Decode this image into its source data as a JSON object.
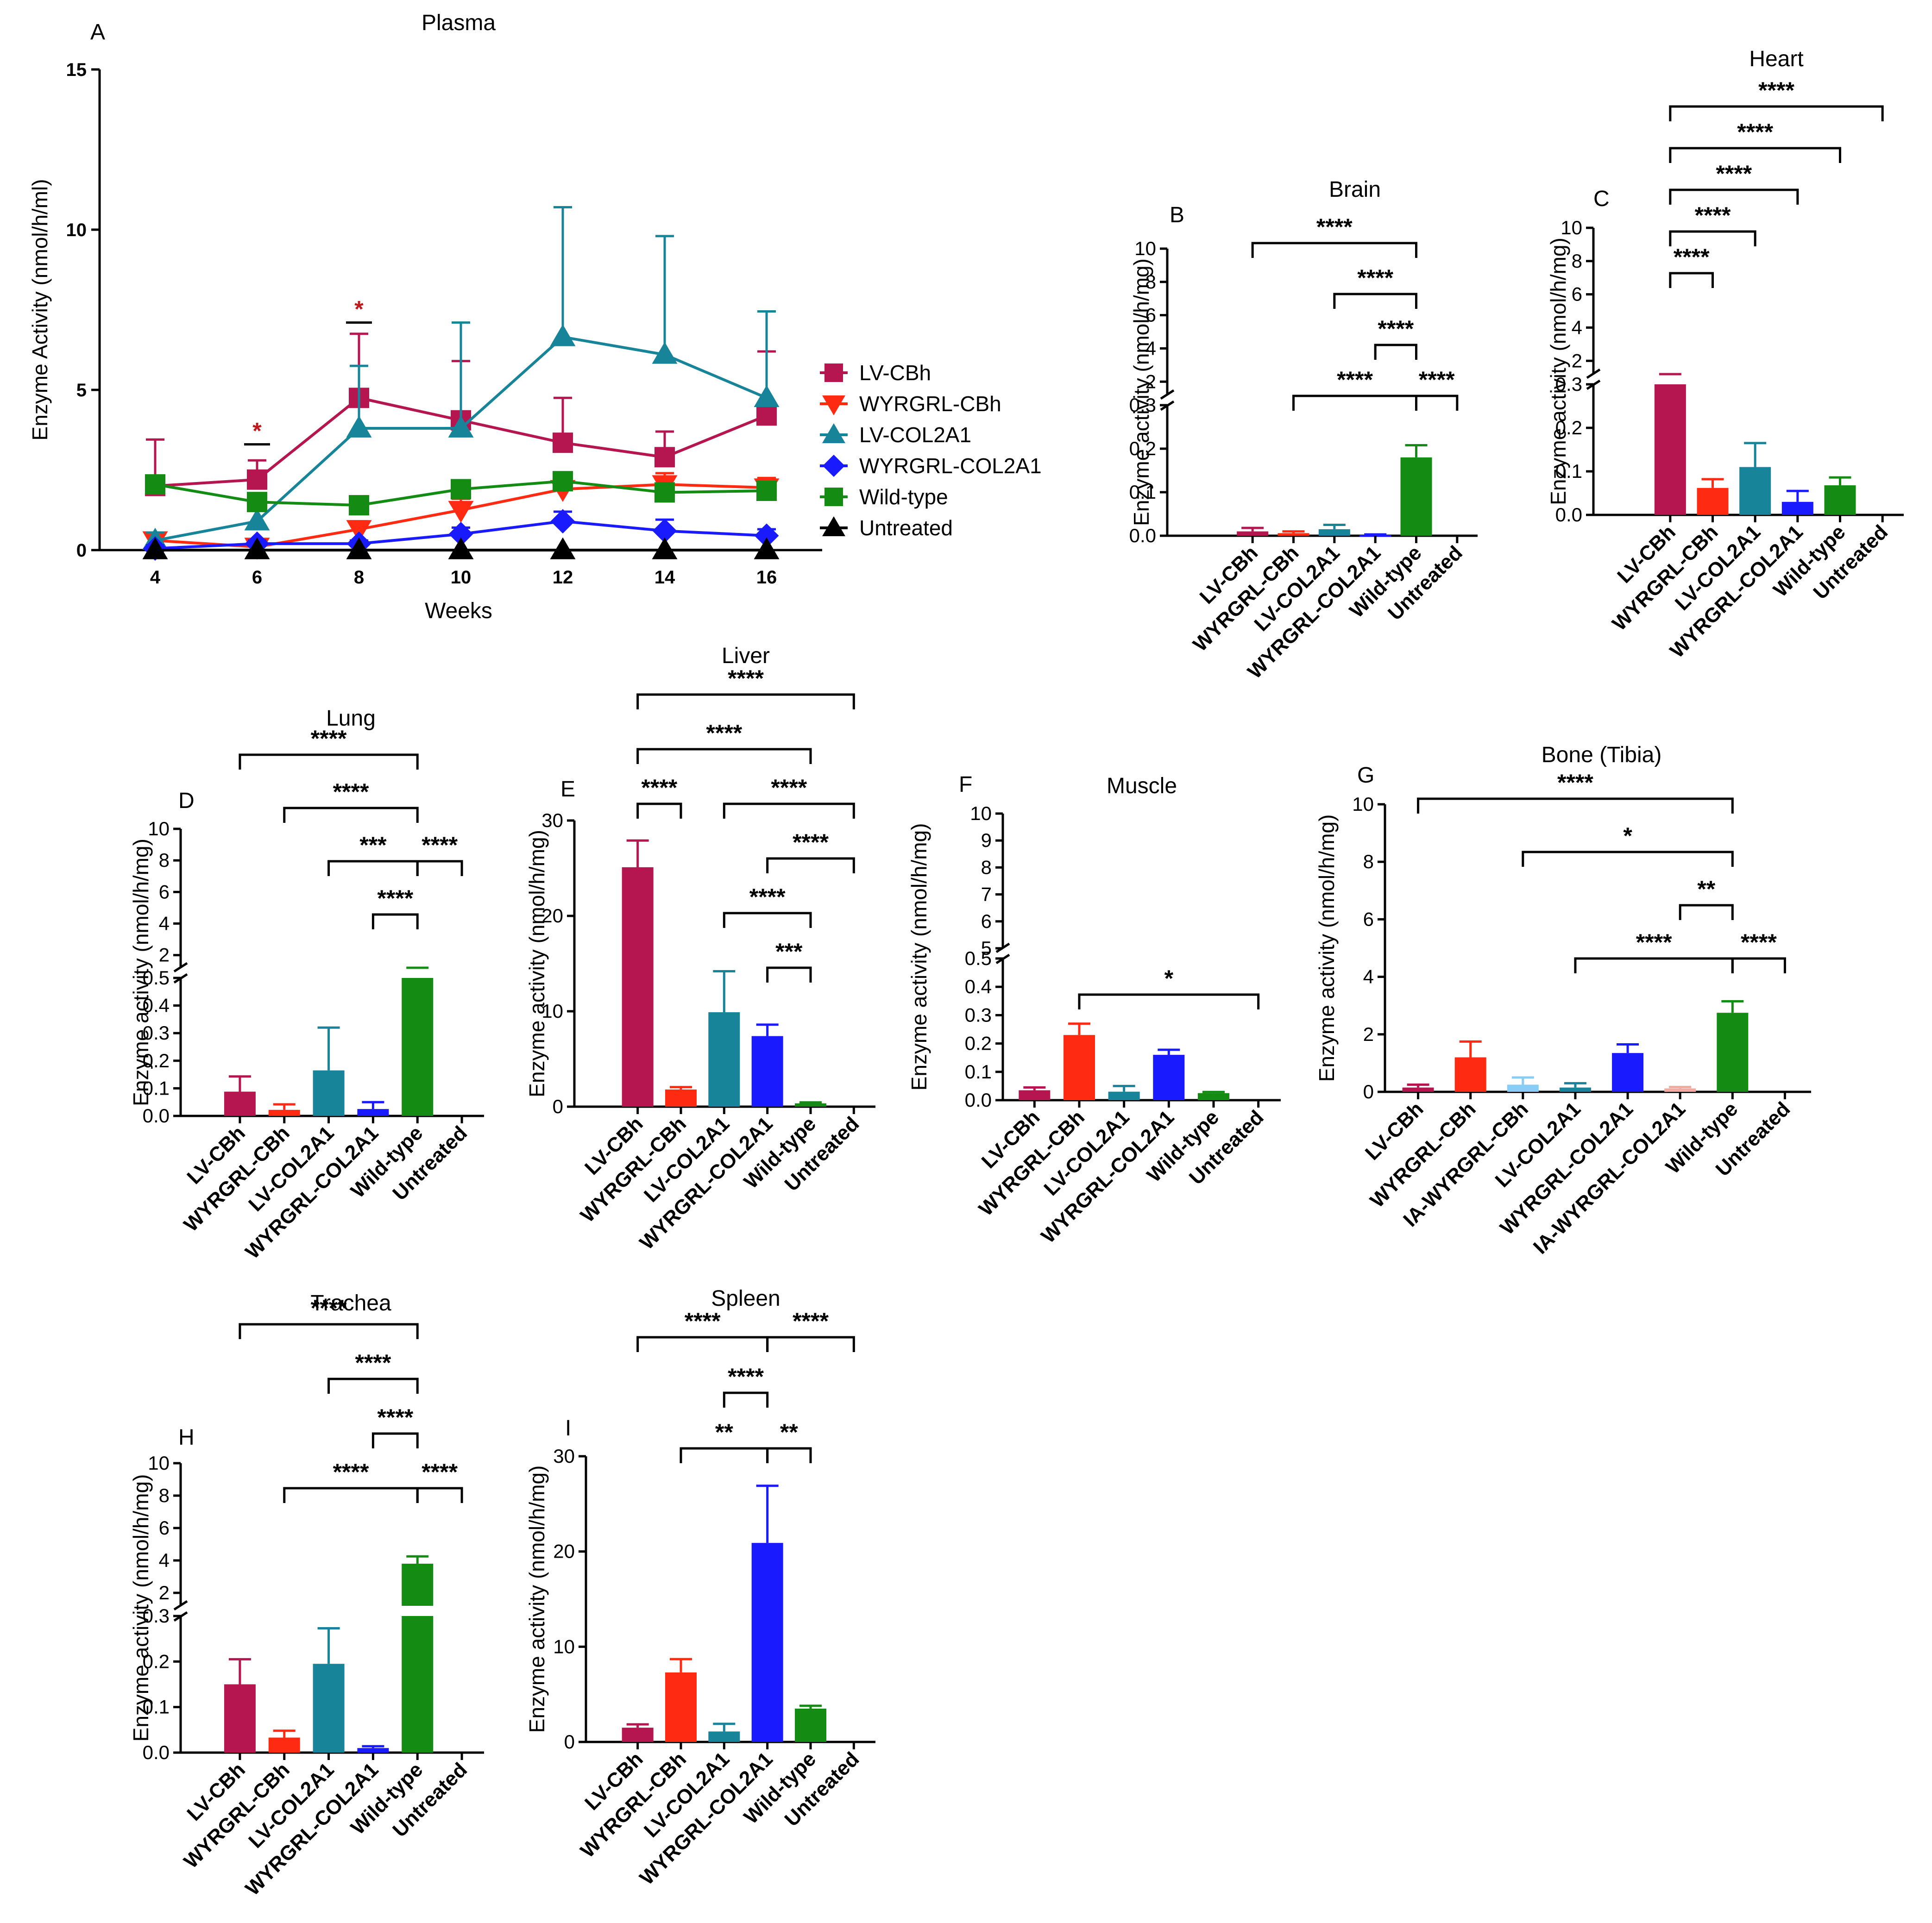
{
  "chart_data": [
    {
      "id": "A",
      "type": "line",
      "panel_label": "A",
      "title": "Plasma",
      "xlabel": "Weeks",
      "ylabel": "Enzyme Activity (nmol/h/ml)",
      "x": [
        4,
        6,
        8,
        10,
        12,
        14,
        16
      ],
      "x_tick_labels": [
        "4",
        "6",
        "8",
        "10",
        "12",
        "14",
        "16"
      ],
      "ylim": [
        0,
        15
      ],
      "y_ticks": [
        0,
        5,
        10,
        15
      ],
      "y_tick_labels": [
        "0",
        "5",
        "10",
        "15"
      ],
      "series": [
        {
          "name": "LV-CBh",
          "color": "#b5164f",
          "marker": "square",
          "values": [
            2.0,
            2.2,
            4.75,
            4.05,
            3.35,
            2.9,
            4.2
          ],
          "err": [
            1.45,
            0.6,
            2.0,
            1.85,
            1.4,
            0.8,
            2.0
          ]
        },
        {
          "name": "WYRGRL-CBh",
          "color": "#ff2a12",
          "marker": "triangle-down",
          "values": [
            0.3,
            0.1,
            0.65,
            1.25,
            1.9,
            2.05,
            1.95
          ],
          "err": [
            0.2,
            0.1,
            0.25,
            0.35,
            0.4,
            0.35,
            0.3
          ]
        },
        {
          "name": "LV-COL2A1",
          "color": "#17849a",
          "marker": "triangle-up",
          "values": [
            0.3,
            0.9,
            3.8,
            3.8,
            6.65,
            6.1,
            4.75
          ],
          "err": [
            0.25,
            0.4,
            1.95,
            3.3,
            4.05,
            3.7,
            2.7
          ]
        },
        {
          "name": "WYRGRL-COL2A1",
          "color": "#1a1aff",
          "marker": "diamond",
          "values": [
            0.05,
            0.2,
            0.2,
            0.5,
            0.9,
            0.6,
            0.45
          ],
          "err": [
            0.1,
            0.1,
            0.1,
            0.2,
            0.3,
            0.35,
            0.2
          ]
        },
        {
          "name": "Wild-type",
          "color": "#148c14",
          "marker": "square",
          "values": [
            2.05,
            1.5,
            1.4,
            1.9,
            2.15,
            1.8,
            1.85
          ],
          "err": [
            0.2,
            0.15,
            0.15,
            0.2,
            0.2,
            0.2,
            0.2
          ]
        },
        {
          "name": "Untreated",
          "color": "#000000",
          "marker": "triangle-up",
          "values": [
            0,
            0,
            0,
            0,
            0,
            0,
            0
          ],
          "err": [
            0,
            0,
            0,
            0,
            0,
            0,
            0
          ]
        }
      ],
      "annotations": [
        {
          "x": 6,
          "y": 3.3,
          "text": "*"
        },
        {
          "x": 8,
          "y": 7.1,
          "text": "*"
        }
      ]
    },
    {
      "id": "B",
      "type": "bar",
      "panel_label": "B",
      "title": "Brain",
      "ylabel": "Enzyme activity (nmol/h/mg)",
      "categories": [
        "LV-CBh",
        "WYRGRL-CBh",
        "LV-COL2A1",
        "WYRGRL-COL2A1",
        "Wild-type",
        "Untreated"
      ],
      "colors": [
        "#b5164f",
        "#ff2a12",
        "#17849a",
        "#1a1aff",
        "#148c14",
        "#000000"
      ],
      "values": [
        0.01,
        0.006,
        0.015,
        0.002,
        0.18,
        0.0
      ],
      "err": [
        0.008,
        0.004,
        0.01,
        0.001,
        0.028,
        0.0
      ],
      "y_low_range": [
        0,
        0.3
      ],
      "y_low_ticks": [
        0,
        0.1,
        0.2,
        0.3
      ],
      "y_low_tick_labels": [
        "0.0",
        "0.1",
        "0.2",
        "0.3"
      ],
      "y_high_range": [
        1.2,
        10
      ],
      "y_high_ticks": [
        2,
        4,
        6,
        8,
        10
      ],
      "y_high_tick_labels": [
        "2",
        "4",
        "6",
        "8",
        "10"
      ],
      "significance": [
        {
          "from": 0,
          "to": 4,
          "text": "****"
        },
        {
          "from": 2,
          "to": 4,
          "text": "****"
        },
        {
          "from": 3,
          "to": 4,
          "text": "****"
        },
        {
          "from": 1,
          "to": 4,
          "text": "****"
        },
        {
          "from": 4,
          "to": 5,
          "text": "****"
        }
      ]
    },
    {
      "id": "C",
      "type": "bar",
      "panel_label": "C",
      "title": "Heart",
      "ylabel": "Enzyme activity (nmol/h/mg)",
      "categories": [
        "LV-CBh",
        "WYRGRL-CBh",
        "LV-COL2A1",
        "WYRGRL-COL2A1",
        "Wild-type",
        "Untreated"
      ],
      "colors": [
        "#b5164f",
        "#ff2a12",
        "#17849a",
        "#1a1aff",
        "#148c14",
        "#000000"
      ],
      "values": [
        0.35,
        0.062,
        0.11,
        0.03,
        0.068,
        0.0
      ],
      "err": [
        0.03,
        0.02,
        0.055,
        0.025,
        0.018,
        0.0
      ],
      "y_low_range": [
        0,
        0.3
      ],
      "y_low_ticks": [
        0,
        0.1,
        0.2,
        0.3
      ],
      "y_low_tick_labels": [
        "0.0",
        "0.1",
        "0.2",
        "0.3"
      ],
      "y_high_range": [
        1.2,
        10
      ],
      "y_high_ticks": [
        2,
        4,
        6,
        8,
        10
      ],
      "y_high_tick_labels": [
        "2",
        "4",
        "6",
        "8",
        "10"
      ],
      "significance": [
        {
          "from": 0,
          "to": 5,
          "text": "****"
        },
        {
          "from": 0,
          "to": 4,
          "text": "****"
        },
        {
          "from": 0,
          "to": 3,
          "text": "****"
        },
        {
          "from": 0,
          "to": 2,
          "text": "****"
        },
        {
          "from": 0,
          "to": 1,
          "text": "****"
        }
      ]
    },
    {
      "id": "D",
      "type": "bar",
      "panel_label": "D",
      "title": "Lung",
      "ylabel": "Enzyme activity (nmol/h/mg)",
      "categories": [
        "LV-CBh",
        "WYRGRL-CBh",
        "LV-COL2A1",
        "WYRGRL-COL2A1",
        "Wild-type",
        "Untreated"
      ],
      "colors": [
        "#b5164f",
        "#ff2a12",
        "#17849a",
        "#1a1aff",
        "#148c14",
        "#000000"
      ],
      "values": [
        0.088,
        0.022,
        0.165,
        0.025,
        0.55,
        0.0
      ],
      "err": [
        0.055,
        0.02,
        0.155,
        0.025,
        0.04,
        0.0
      ],
      "y_low_range": [
        0,
        0.5
      ],
      "y_low_ticks": [
        0,
        0.1,
        0.2,
        0.3,
        0.4,
        0.5
      ],
      "y_low_tick_labels": [
        "0.0",
        "0.1",
        "0.2",
        "0.3",
        "0.4",
        "0.5"
      ],
      "y_high_range": [
        1.2,
        10
      ],
      "y_high_ticks": [
        2,
        4,
        6,
        8,
        10
      ],
      "y_high_tick_labels": [
        "2",
        "4",
        "6",
        "8",
        "10"
      ],
      "significance": [
        {
          "from": 0,
          "to": 4,
          "text": "****"
        },
        {
          "from": 1,
          "to": 4,
          "text": "****"
        },
        {
          "from": 2,
          "to": 4,
          "text": "***"
        },
        {
          "from": 3,
          "to": 4,
          "text": "****"
        },
        {
          "from": 4,
          "to": 5,
          "text": "****"
        }
      ]
    },
    {
      "id": "E",
      "type": "bar",
      "panel_label": "E",
      "title": "Liver",
      "ylabel": "Enzyme activity (nmol/h/mg)",
      "categories": [
        "LV-CBh",
        "WYRGRL-CBh",
        "LV-COL2A1",
        "WYRGRL-COL2A1",
        "Wild-type",
        "Untreated"
      ],
      "colors": [
        "#b5164f",
        "#ff2a12",
        "#17849a",
        "#1a1aff",
        "#148c14",
        "#000000"
      ],
      "values": [
        25.1,
        1.8,
        9.9,
        7.4,
        0.35,
        0.0
      ],
      "err": [
        2.8,
        0.25,
        4.3,
        1.2,
        0.1,
        0.0
      ],
      "ylim": [
        0,
        30
      ],
      "y_ticks": [
        0,
        10,
        20,
        30
      ],
      "y_tick_labels": [
        "0",
        "10",
        "20",
        "30"
      ],
      "significance": [
        {
          "from": 0,
          "to": 5,
          "text": "****"
        },
        {
          "from": 0,
          "to": 4,
          "text": "****"
        },
        {
          "from": 0,
          "to": 1,
          "text": "****"
        },
        {
          "from": 2,
          "to": 5,
          "text": "****"
        },
        {
          "from": 3,
          "to": 5,
          "text": "****"
        },
        {
          "from": 2,
          "to": 4,
          "text": "****"
        },
        {
          "from": 3,
          "to": 4,
          "text": "***"
        }
      ]
    },
    {
      "id": "F",
      "type": "bar",
      "panel_label": "F",
      "title": "Muscle",
      "ylabel": "Enzyme activity (nmol/h/mg)",
      "categories": [
        "LV-CBh",
        "WYRGRL-CBh",
        "LV-COL2A1",
        "WYRGRL-COL2A1",
        "Wild-type",
        "Untreated"
      ],
      "colors": [
        "#b5164f",
        "#ff2a12",
        "#17849a",
        "#1a1aff",
        "#148c14",
        "#000000"
      ],
      "values": [
        0.035,
        0.23,
        0.03,
        0.16,
        0.025,
        0.0
      ],
      "err": [
        0.01,
        0.04,
        0.02,
        0.018,
        0.004,
        0.0
      ],
      "y_low_range": [
        0,
        0.5
      ],
      "y_low_ticks": [
        0,
        0.1,
        0.2,
        0.3,
        0.4,
        0.5
      ],
      "y_low_tick_labels": [
        "0.0",
        "0.1",
        "0.2",
        "0.3",
        "0.4",
        "0.5"
      ],
      "y_high_range": [
        5,
        10
      ],
      "y_high_ticks": [
        5,
        6,
        7,
        8,
        9,
        10
      ],
      "y_high_tick_labels": [
        "5",
        "6",
        "7",
        "8",
        "9",
        "10"
      ],
      "significance": [
        {
          "from": 1,
          "to": 5,
          "text": "*"
        }
      ]
    },
    {
      "id": "G",
      "type": "bar",
      "panel_label": "G",
      "title": "Bone (Tibia)",
      "ylabel": "Enzyme activity (nmol/h/mg)",
      "categories": [
        "LV-CBh",
        "WYRGRL-CBh",
        "IA-WYRGRL-CBh",
        "LV-COL2A1",
        "WYRGRL-COL2A1",
        "IA-WYRGRL-COL2A1",
        "Wild-type",
        "Untreated"
      ],
      "colors": [
        "#b5164f",
        "#ff2a12",
        "#87cdf5",
        "#17849a",
        "#1a1aff",
        "#f6a9a0",
        "#148c14",
        "#000000"
      ],
      "values": [
        0.15,
        1.2,
        0.25,
        0.15,
        1.35,
        0.12,
        2.75,
        0.0
      ],
      "err": [
        0.1,
        0.55,
        0.25,
        0.15,
        0.3,
        0.05,
        0.4,
        0.0
      ],
      "ylim": [
        0,
        10
      ],
      "y_ticks": [
        0,
        2,
        4,
        6,
        8,
        10
      ],
      "y_tick_labels": [
        "0",
        "2",
        "4",
        "6",
        "8",
        "10"
      ],
      "significance": [
        {
          "from": 0,
          "to": 6,
          "text": "****"
        },
        {
          "from": 2,
          "to": 6,
          "text": "*"
        },
        {
          "from": 5,
          "to": 6,
          "text": "**"
        },
        {
          "from": 3,
          "to": 6,
          "text": "****"
        },
        {
          "from": 6,
          "to": 7,
          "text": "****"
        }
      ]
    },
    {
      "id": "H",
      "type": "bar",
      "panel_label": "H",
      "title": "Trachea",
      "ylabel": "Enzyme activity (nmol/h/mg)",
      "categories": [
        "LV-CBh",
        "WYRGRL-CBh",
        "LV-COL2A1",
        "WYRGRL-COL2A1",
        "Wild-type",
        "Untreated"
      ],
      "colors": [
        "#b5164f",
        "#ff2a12",
        "#17849a",
        "#1a1aff",
        "#148c14",
        "#000000"
      ],
      "values": [
        0.15,
        0.033,
        0.195,
        0.01,
        3.8,
        0.0
      ],
      "err": [
        0.055,
        0.015,
        0.078,
        0.004,
        0.45,
        0.0
      ],
      "y_low_range": [
        0,
        0.3
      ],
      "y_low_ticks": [
        0,
        0.1,
        0.2,
        0.3
      ],
      "y_low_tick_labels": [
        "0.0",
        "0.1",
        "0.2",
        "0.3"
      ],
      "y_high_range": [
        1.2,
        10
      ],
      "y_high_ticks": [
        2,
        4,
        6,
        8,
        10
      ],
      "y_high_tick_labels": [
        "2",
        "4",
        "6",
        "8",
        "10"
      ],
      "significance": [
        {
          "from": 0,
          "to": 4,
          "text": "****"
        },
        {
          "from": 2,
          "to": 4,
          "text": "****"
        },
        {
          "from": 3,
          "to": 4,
          "text": "****"
        },
        {
          "from": 1,
          "to": 4,
          "text": "****"
        },
        {
          "from": 4,
          "to": 5,
          "text": "****"
        }
      ]
    },
    {
      "id": "I",
      "type": "bar",
      "panel_label": "I",
      "title": "Spleen",
      "ylabel": "Enzyme activity (nmol/h/mg)",
      "categories": [
        "LV-CBh",
        "WYRGRL-CBh",
        "LV-COL2A1",
        "WYRGRL-COL2A1",
        "Wild-type",
        "Untreated"
      ],
      "colors": [
        "#b5164f",
        "#ff2a12",
        "#17849a",
        "#1a1aff",
        "#148c14",
        "#000000"
      ],
      "values": [
        1.5,
        7.3,
        1.1,
        20.9,
        3.5,
        0.0
      ],
      "err": [
        0.35,
        1.4,
        0.8,
        6.0,
        0.3,
        0.0
      ],
      "ylim": [
        0,
        30
      ],
      "y_ticks": [
        0,
        10,
        20,
        30
      ],
      "y_tick_labels": [
        "0",
        "10",
        "20",
        "30"
      ],
      "significance": [
        {
          "from": 0,
          "to": 3,
          "text": "****"
        },
        {
          "from": 3,
          "to": 5,
          "text": "****"
        },
        {
          "from": 2,
          "to": 3,
          "text": "****"
        },
        {
          "from": 1,
          "to": 3,
          "text": "**"
        },
        {
          "from": 3,
          "to": 4,
          "text": "**"
        }
      ]
    }
  ]
}
